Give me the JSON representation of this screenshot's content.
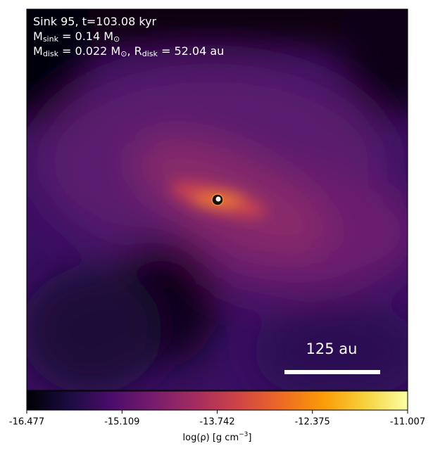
{
  "chart_data": {
    "type": "density-map",
    "annotation": [
      [
        "Sink 95, t=103.08 kyr"
      ],
      [
        "M",
        "sink",
        " = 0.14 M",
        "⊙"
      ],
      [
        "M",
        "disk",
        " = 0.022 M",
        "⊙",
        ", R",
        "disk",
        " = 52.04 au"
      ]
    ],
    "scale_bar": "125 au",
    "colormap": "inferno",
    "colorbar": {
      "label": [
        "log(ρ) [g cm",
        "−3",
        "]"
      ],
      "lim": [
        -16.477,
        -11.007
      ],
      "ticks": [
        -16.477,
        -15.109,
        -13.742,
        -12.375,
        -11.007
      ]
    }
  }
}
